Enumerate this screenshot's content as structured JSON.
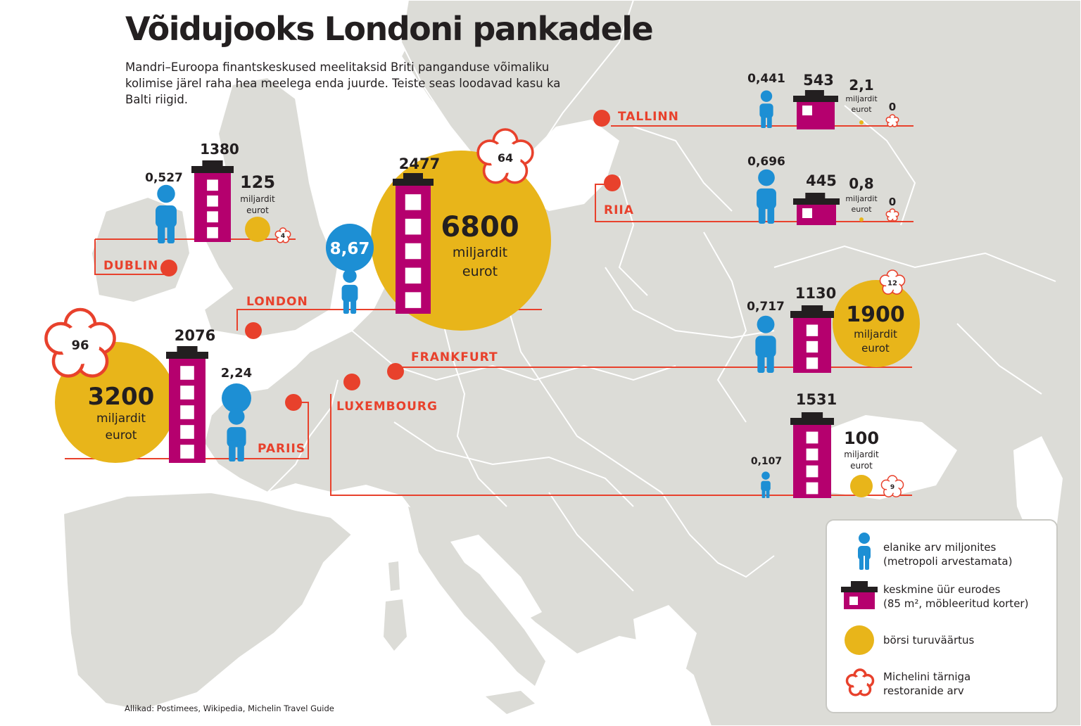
{
  "title": "Võidujooks Londoni pankadele",
  "subtitle": "Mandri–Euroopa finantskeskused meelitaksid Briti panganduse võimaliku kolimise järel raha hea meelega enda juurde. Teiste seas loodavad kasu ka Balti riigid.",
  "source": "Allikad: Postimees, Wikipedia, Michelin Travel Guide",
  "colors": {
    "land": "#dcdcd7",
    "sea": "#ffffff",
    "line": "#e8412c",
    "person": "#1d8fd4",
    "house": "#b5006e",
    "market": "#e8b51a",
    "star": "#e8412c",
    "text": "#231f20"
  },
  "units": {
    "billion": "miljardit",
    "euro": "eurot"
  },
  "cities": [
    {
      "id": "dublin",
      "name": "DUBLIN",
      "population": "0,527",
      "rent": "1380",
      "market_cap": "125",
      "michelin": "4"
    },
    {
      "id": "london",
      "name": "LONDON",
      "population": "8,67",
      "rent": "2477",
      "market_cap": "6800",
      "michelin": "64"
    },
    {
      "id": "paris",
      "name": "PARIIS",
      "population": "2,24",
      "rent": "2076",
      "market_cap": "3200",
      "michelin": "96"
    },
    {
      "id": "frankfurt",
      "name": "FRANKFURT",
      "population": "0,717",
      "rent": "1130",
      "market_cap": "1900",
      "michelin": "12"
    },
    {
      "id": "luxembourg",
      "name": "LUXEMBOURG",
      "population": "0,107",
      "rent": "1531",
      "market_cap": "100",
      "michelin": "9"
    },
    {
      "id": "tallinn",
      "name": "TALLINN",
      "population": "0,441",
      "rent": "543",
      "market_cap": "2,1",
      "michelin": "0"
    },
    {
      "id": "riga",
      "name": "RIIA",
      "population": "0,696",
      "rent": "445",
      "market_cap": "0,8",
      "michelin": "0"
    }
  ],
  "legend": {
    "population": "elanike arv miljonites\n(metropoli arvestamata)",
    "rent": "keskmine üür eurodes\n(85 m², möbleeritud korter)",
    "market": "börsi turuväärtus",
    "michelin": "Michelini tärniga\nrestoranide arv"
  }
}
